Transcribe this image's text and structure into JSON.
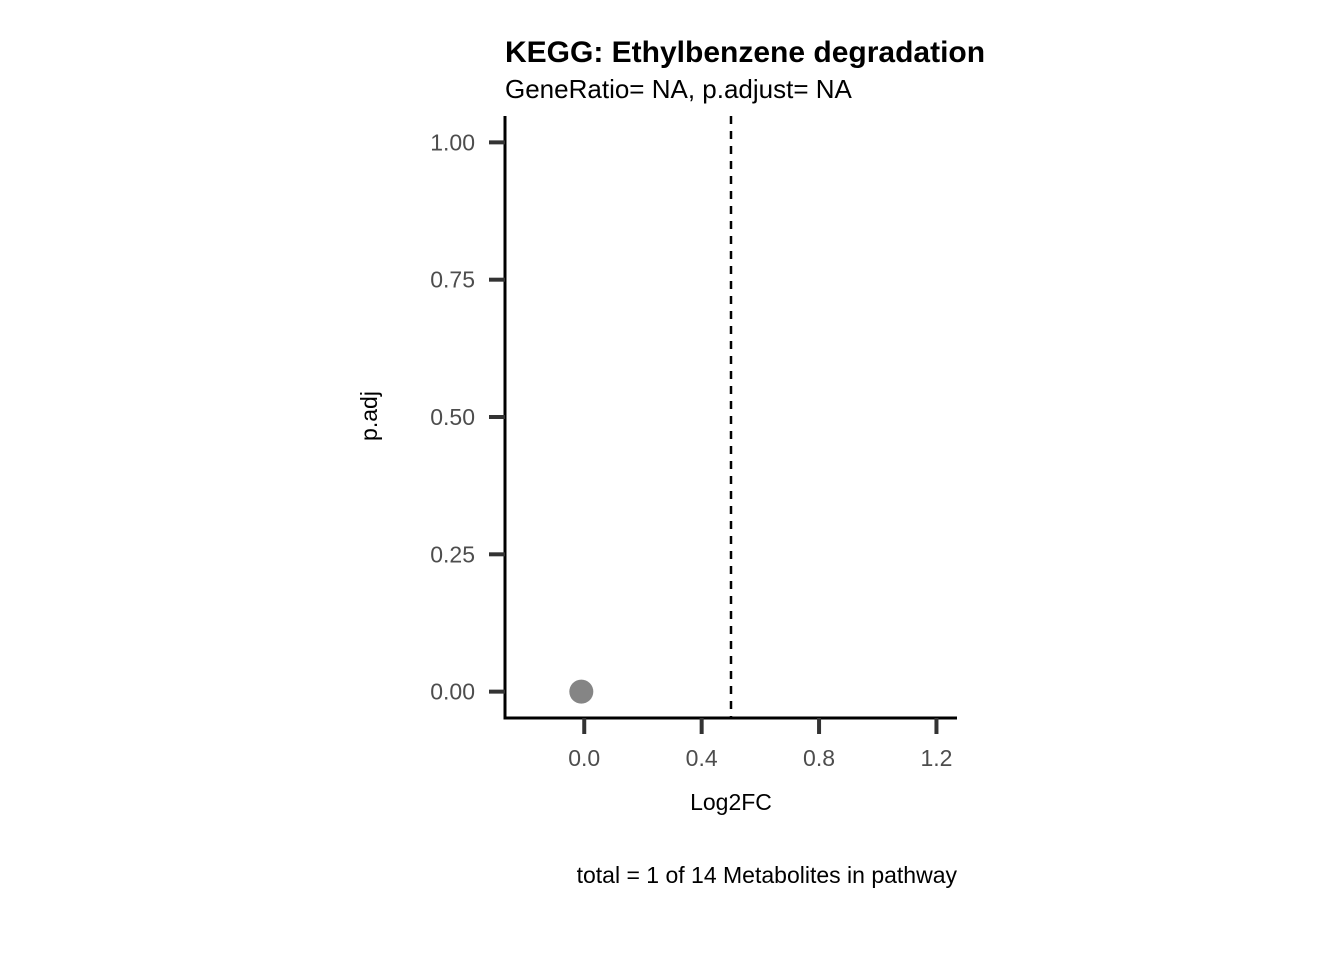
{
  "chart_data": {
    "type": "scatter",
    "title": "KEGG: Ethylbenzene degradation",
    "subtitle": "GeneRatio= NA, p.adjust= NA",
    "xlabel": "Log2FC",
    "ylabel": "p.adj",
    "caption": "total = 1 of 14 Metabolites in pathway",
    "xlim": [
      -0.27,
      1.27
    ],
    "ylim": [
      -0.048,
      1.048
    ],
    "x_ticks": [
      0.0,
      0.4,
      0.8,
      1.2
    ],
    "x_tick_labels": [
      "0.0",
      "0.4",
      "0.8",
      "1.2"
    ],
    "y_ticks": [
      0.0,
      0.25,
      0.5,
      0.75,
      1.0
    ],
    "y_tick_labels": [
      "0.00",
      "0.25",
      "0.50",
      "0.75",
      "1.00"
    ],
    "vline": 0.5,
    "grid": false,
    "points": [
      {
        "x": -0.01,
        "y": 0.0
      }
    ],
    "colors": {
      "point": "#858585",
      "axis": "#000000",
      "tick": "#333333",
      "tick_label": "#4d4d4d",
      "vline": "#000000"
    }
  }
}
